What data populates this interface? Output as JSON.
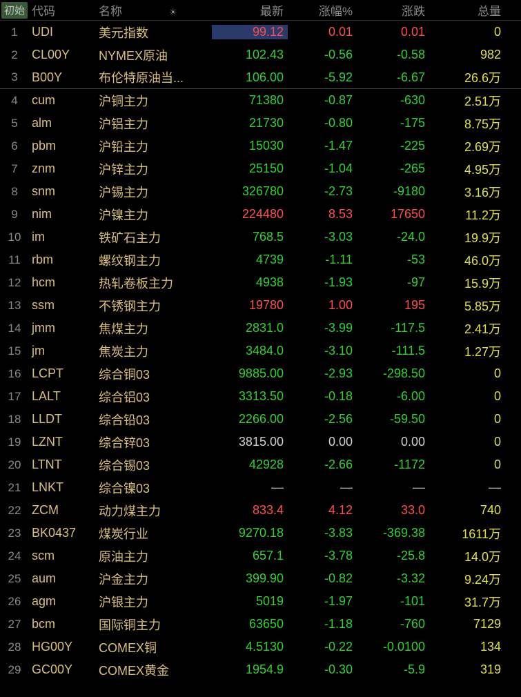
{
  "header": {
    "init_label": "初始",
    "code_label": "代码",
    "name_label": "名称",
    "sort_icon": "☀",
    "latest_label": "最新",
    "pct_label": "涨幅%",
    "change_label": "涨跌",
    "volume_label": "总量"
  },
  "colors": {
    "background": "#000000",
    "header_text": "#888888",
    "row_num": "#888888",
    "code": "#d8c078",
    "name": "#d8c078",
    "positive": "#ff4d4d",
    "negative": "#30d030",
    "neutral": "#d0d0d0",
    "volume": "#e0e040",
    "init_btn_bg": "#3a5a3a",
    "highlight_bg": "#2a3a6a",
    "divider": "#444444"
  },
  "rows": [
    {
      "n": "1",
      "code": "UDI",
      "name": "美元指数",
      "latest": "99.12",
      "pct": "0.01",
      "chg": "0.01",
      "vol": "0",
      "dir": "pos",
      "highlight": true,
      "divider": false
    },
    {
      "n": "2",
      "code": "CL00Y",
      "name": "NYMEX原油",
      "latest": "102.43",
      "pct": "-0.56",
      "chg": "-0.58",
      "vol": "982",
      "dir": "neg",
      "highlight": false,
      "divider": false
    },
    {
      "n": "3",
      "code": "B00Y",
      "name": "布伦特原油当...",
      "latest": "106.00",
      "pct": "-5.92",
      "chg": "-6.67",
      "vol": "26.6万",
      "dir": "neg",
      "highlight": false,
      "divider": true
    },
    {
      "n": "4",
      "code": "cum",
      "name": "沪铜主力",
      "latest": "71380",
      "pct": "-0.87",
      "chg": "-630",
      "vol": "2.51万",
      "dir": "neg",
      "highlight": false,
      "divider": false
    },
    {
      "n": "5",
      "code": "alm",
      "name": "沪铝主力",
      "latest": "21730",
      "pct": "-0.80",
      "chg": "-175",
      "vol": "8.75万",
      "dir": "neg",
      "highlight": false,
      "divider": false
    },
    {
      "n": "6",
      "code": "pbm",
      "name": "沪铅主力",
      "latest": "15030",
      "pct": "-1.47",
      "chg": "-225",
      "vol": "2.69万",
      "dir": "neg",
      "highlight": false,
      "divider": false
    },
    {
      "n": "7",
      "code": "znm",
      "name": "沪锌主力",
      "latest": "25150",
      "pct": "-1.04",
      "chg": "-265",
      "vol": "4.95万",
      "dir": "neg",
      "highlight": false,
      "divider": false
    },
    {
      "n": "8",
      "code": "snm",
      "name": "沪锡主力",
      "latest": "326780",
      "pct": "-2.73",
      "chg": "-9180",
      "vol": "3.16万",
      "dir": "neg",
      "highlight": false,
      "divider": false
    },
    {
      "n": "9",
      "code": "nim",
      "name": "沪镍主力",
      "latest": "224480",
      "pct": "8.53",
      "chg": "17650",
      "vol": "11.2万",
      "dir": "pos",
      "highlight": false,
      "divider": false
    },
    {
      "n": "10",
      "code": "im",
      "name": "铁矿石主力",
      "latest": "768.5",
      "pct": "-3.03",
      "chg": "-24.0",
      "vol": "19.9万",
      "dir": "neg",
      "highlight": false,
      "divider": false
    },
    {
      "n": "11",
      "code": "rbm",
      "name": "螺纹钢主力",
      "latest": "4739",
      "pct": "-1.11",
      "chg": "-53",
      "vol": "46.0万",
      "dir": "neg",
      "highlight": false,
      "divider": false
    },
    {
      "n": "12",
      "code": "hcm",
      "name": "热轧卷板主力",
      "latest": "4938",
      "pct": "-1.93",
      "chg": "-97",
      "vol": "15.9万",
      "dir": "neg",
      "highlight": false,
      "divider": false
    },
    {
      "n": "13",
      "code": "ssm",
      "name": "不锈钢主力",
      "latest": "19780",
      "pct": "1.00",
      "chg": "195",
      "vol": "5.85万",
      "dir": "pos",
      "highlight": false,
      "divider": false
    },
    {
      "n": "14",
      "code": "jmm",
      "name": "焦煤主力",
      "latest": "2831.0",
      "pct": "-3.99",
      "chg": "-117.5",
      "vol": "2.41万",
      "dir": "neg",
      "highlight": false,
      "divider": false
    },
    {
      "n": "15",
      "code": "jm",
      "name": "焦炭主力",
      "latest": "3484.0",
      "pct": "-3.10",
      "chg": "-111.5",
      "vol": "1.27万",
      "dir": "neg",
      "highlight": false,
      "divider": false
    },
    {
      "n": "16",
      "code": "LCPT",
      "name": "综合铜03",
      "latest": "9885.00",
      "pct": "-2.93",
      "chg": "-298.50",
      "vol": "0",
      "dir": "neg",
      "highlight": false,
      "divider": false
    },
    {
      "n": "17",
      "code": "LALT",
      "name": "综合铝03",
      "latest": "3313.50",
      "pct": "-0.18",
      "chg": "-6.00",
      "vol": "0",
      "dir": "neg",
      "highlight": false,
      "divider": false
    },
    {
      "n": "18",
      "code": "LLDT",
      "name": "综合铅03",
      "latest": "2266.00",
      "pct": "-2.56",
      "chg": "-59.50",
      "vol": "0",
      "dir": "neg",
      "highlight": false,
      "divider": false
    },
    {
      "n": "19",
      "code": "LZNT",
      "name": "综合锌03",
      "latest": "3815.00",
      "pct": "0.00",
      "chg": "0.00",
      "vol": "0",
      "dir": "neutral",
      "highlight": false,
      "divider": false
    },
    {
      "n": "20",
      "code": "LTNT",
      "name": "综合锡03",
      "latest": "42928",
      "pct": "-2.66",
      "chg": "-1172",
      "vol": "0",
      "dir": "neg",
      "highlight": false,
      "divider": false
    },
    {
      "n": "21",
      "code": "LNKT",
      "name": "综合镍03",
      "latest": "—",
      "pct": "—",
      "chg": "—",
      "vol": "—",
      "dir": "dash",
      "highlight": false,
      "divider": false
    },
    {
      "n": "22",
      "code": "ZCM",
      "name": "动力煤主力",
      "latest": "833.4",
      "pct": "4.12",
      "chg": "33.0",
      "vol": "740",
      "dir": "pos",
      "highlight": false,
      "divider": false
    },
    {
      "n": "23",
      "code": "BK0437",
      "name": "煤炭行业",
      "latest": "9270.18",
      "pct": "-3.83",
      "chg": "-369.38",
      "vol": "1611万",
      "dir": "neg",
      "highlight": false,
      "divider": false
    },
    {
      "n": "24",
      "code": "scm",
      "name": "原油主力",
      "latest": "657.1",
      "pct": "-3.78",
      "chg": "-25.8",
      "vol": "14.0万",
      "dir": "neg",
      "highlight": false,
      "divider": false
    },
    {
      "n": "25",
      "code": "aum",
      "name": "沪金主力",
      "latest": "399.90",
      "pct": "-0.82",
      "chg": "-3.32",
      "vol": "9.24万",
      "dir": "neg",
      "highlight": false,
      "divider": false
    },
    {
      "n": "26",
      "code": "agm",
      "name": "沪银主力",
      "latest": "5019",
      "pct": "-1.97",
      "chg": "-101",
      "vol": "31.7万",
      "dir": "neg",
      "highlight": false,
      "divider": false
    },
    {
      "n": "27",
      "code": "bcm",
      "name": "国际铜主力",
      "latest": "63650",
      "pct": "-1.18",
      "chg": "-760",
      "vol": "7129",
      "dir": "neg",
      "highlight": false,
      "divider": false
    },
    {
      "n": "28",
      "code": "HG00Y",
      "name": "COMEX铜",
      "latest": "4.5130",
      "pct": "-0.22",
      "chg": "-0.0100",
      "vol": "134",
      "dir": "neg",
      "highlight": false,
      "divider": false
    },
    {
      "n": "29",
      "code": "GC00Y",
      "name": "COMEX黄金",
      "latest": "1954.9",
      "pct": "-0.30",
      "chg": "-5.9",
      "vol": "319",
      "dir": "neg",
      "highlight": false,
      "divider": false
    }
  ]
}
